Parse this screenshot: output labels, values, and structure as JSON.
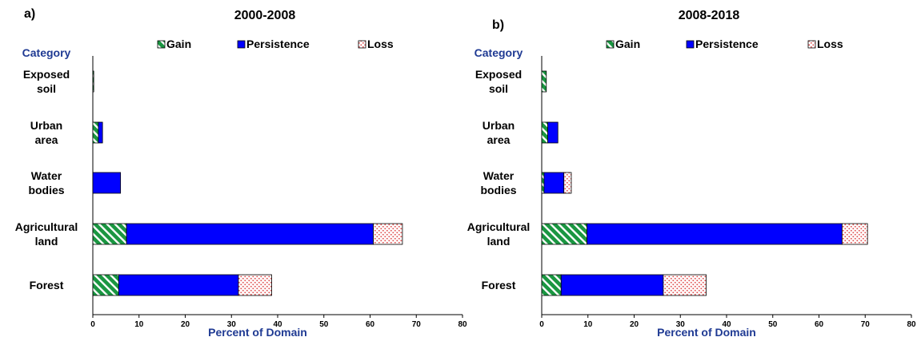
{
  "figure": {
    "colors": {
      "gain_fill": "#1a9641",
      "gain_stripe": "#ffffff",
      "persistence": "#0000ff",
      "loss_fill": "#ffffff",
      "loss_dot": "#e05050",
      "category_label": "#1f3a93",
      "axis_label": "#1f3a93",
      "text": "#000000"
    }
  },
  "chart_data": [
    {
      "type": "bar",
      "orientation": "horizontal",
      "stacked": true,
      "panel_label": "a)",
      "title": "2000-2008",
      "category_axis_title": "Category",
      "xlabel": "Percent of Domain",
      "xlim": [
        0,
        80
      ],
      "xticks": [
        0,
        10,
        20,
        30,
        40,
        50,
        60,
        70,
        80
      ],
      "legend_position": "top",
      "categories": [
        [
          "Exposed",
          "soil"
        ],
        [
          "Urban",
          "area"
        ],
        [
          "Water",
          "bodies"
        ],
        [
          "Agricultural",
          "land"
        ],
        [
          "Forest"
        ]
      ],
      "series": [
        {
          "name": "Gain",
          "key": "gain",
          "values": [
            0.2,
            1.2,
            0,
            7.3,
            5.6
          ]
        },
        {
          "name": "Persistence",
          "key": "persistence",
          "values": [
            0,
            0.9,
            6.0,
            53.4,
            25.9
          ]
        },
        {
          "name": "Loss",
          "key": "loss",
          "values": [
            0,
            0,
            0,
            6.3,
            7.2
          ]
        }
      ]
    },
    {
      "type": "bar",
      "orientation": "horizontal",
      "stacked": true,
      "panel_label": "b)",
      "title": "2008-2018",
      "category_axis_title": "Category",
      "xlabel": "Percent of Domain",
      "xlim": [
        0,
        80
      ],
      "xticks": [
        0,
        10,
        20,
        30,
        40,
        50,
        60,
        70,
        80
      ],
      "legend_position": "top",
      "categories": [
        [
          "Exposed",
          "soil"
        ],
        [
          "Urban",
          "area"
        ],
        [
          "Water",
          "bodies"
        ],
        [
          "Agricultural",
          "land"
        ],
        [
          "Forest"
        ]
      ],
      "series": [
        {
          "name": "Gain",
          "key": "gain",
          "values": [
            1.0,
            1.3,
            0.5,
            9.8,
            4.2
          ]
        },
        {
          "name": "Persistence",
          "key": "persistence",
          "values": [
            0,
            2.2,
            4.3,
            55.2,
            22.1
          ]
        },
        {
          "name": "Loss",
          "key": "loss",
          "values": [
            0,
            0,
            1.6,
            5.5,
            9.3
          ]
        }
      ]
    }
  ]
}
